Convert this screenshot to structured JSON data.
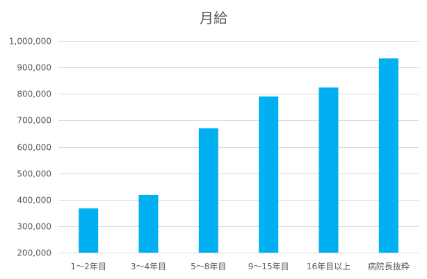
{
  "chart_data": {
    "type": "bar",
    "title": "月給",
    "categories": [
      "1～2年目",
      "3～4年目",
      "5～8年目",
      "9～15年目",
      "16年目以上",
      "病院長抜粋"
    ],
    "values": [
      367000,
      418000,
      670000,
      790000,
      824000,
      934000
    ],
    "xlabel": "",
    "ylabel": "",
    "ylim": [
      200000,
      1000000
    ],
    "yticks": [
      200000,
      300000,
      400000,
      500000,
      600000,
      700000,
      800000,
      900000,
      1000000
    ],
    "ytick_labels": [
      "200,000",
      "300,000",
      "400,000",
      "500,000",
      "600,000",
      "700,000",
      "800,000",
      "900,000",
      "1,000,000"
    ],
    "grid": true,
    "legend": false,
    "bar_color": "#00B0F0",
    "grid_color": "#D9D9D9"
  }
}
